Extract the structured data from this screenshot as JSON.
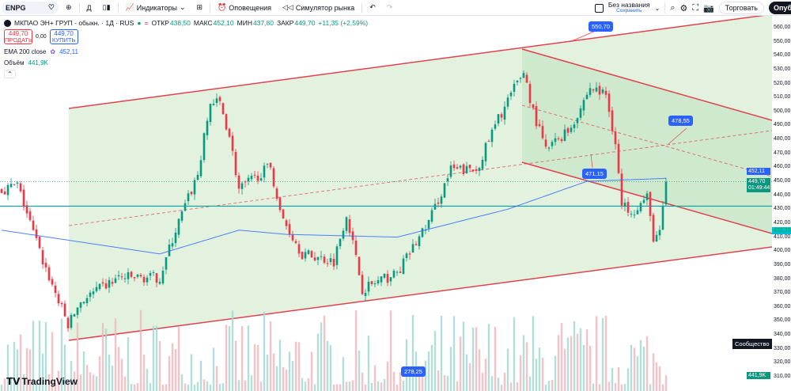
{
  "toolbar": {
    "symbol": "ENPG",
    "interval": "Д",
    "indicators": "Индикаторы",
    "alerts": "Оповещения",
    "replay": "Симулятор рынка",
    "layout_name": "Без названия",
    "layout_save": "Сохранить",
    "trade": "Торговать",
    "publish": "Опубликовать"
  },
  "legend": {
    "title": "МКПАО ЭН+ ГРУП - обыкн. · 1Д · RUS",
    "o_label": "ОТКР",
    "o": "438,50",
    "h_label": "МАКС",
    "h": "452,10",
    "l_label": "МИН",
    "l": "437,80",
    "c_label": "ЗАКР",
    "c": "449,70",
    "change": "+11,35 (+2,59%)",
    "sell_price": "449,70",
    "sell_label": "ПРОДАТЬ",
    "spread": "0,00",
    "buy_price": "449,70",
    "buy_label": "КУПИТЬ",
    "ema_label": "EMA 200 close",
    "ema_value": "452,11",
    "vol_label": "Объём",
    "vol_value": "441,9K"
  },
  "axis": {
    "ticks": [
      "560,00",
      "550,00",
      "540,00",
      "530,00",
      "520,00",
      "510,00",
      "500,00",
      "490,00",
      "480,00",
      "470,00",
      "460,00",
      "450,00",
      "440,00",
      "430,00",
      "420,00",
      "410,00",
      "400,00",
      "390,00",
      "380,00",
      "370,00",
      "360,00",
      "350,00",
      "340,00",
      "330,00",
      "320,00",
      "310,00"
    ],
    "ema_price": "452,11",
    "last_price": "449,70",
    "countdown": "01:49:44",
    "hline_price": "432,20",
    "vol_badge": "441,9K"
  },
  "annotations": {
    "a1": "550,70",
    "a2": "478,55",
    "a3": "471,15",
    "a4": "278,25"
  },
  "community_label": "Сообщество",
  "brand": "TradingView",
  "colors": {
    "up": "#089981",
    "down": "#f23645",
    "channel": "#e0424e",
    "ema": "#2962ff",
    "hline": "#00a3a3"
  },
  "chart_data": {
    "type": "candlestick",
    "price_path": [
      [
        0,
        444
      ],
      [
        5,
        447
      ],
      [
        8,
        427
      ],
      [
        13,
        393
      ],
      [
        21,
        347
      ],
      [
        25,
        364
      ],
      [
        37,
        381
      ],
      [
        50,
        381
      ],
      [
        55,
        415
      ],
      [
        62,
        455
      ],
      [
        66,
        506
      ],
      [
        69,
        506
      ],
      [
        72,
        483
      ],
      [
        75,
        444
      ],
      [
        85,
        461
      ],
      [
        88,
        427
      ],
      [
        95,
        398
      ],
      [
        105,
        393
      ],
      [
        109,
        427
      ],
      [
        114,
        373
      ],
      [
        125,
        384
      ],
      [
        135,
        421
      ],
      [
        142,
        458
      ],
      [
        150,
        458
      ],
      [
        157,
        495
      ],
      [
        165,
        529
      ],
      [
        168,
        500
      ],
      [
        172,
        472
      ],
      [
        180,
        489
      ],
      [
        186,
        517
      ],
      [
        191,
        512
      ],
      [
        194,
        478
      ],
      [
        196,
        432
      ],
      [
        200,
        430
      ],
      [
        204,
        438
      ],
      [
        206,
        410
      ],
      [
        208,
        412
      ],
      [
        210,
        449.7
      ]
    ],
    "ema_path": [
      [
        0,
        415
      ],
      [
        50,
        398
      ],
      [
        75,
        415
      ],
      [
        90,
        412
      ],
      [
        125,
        410
      ],
      [
        160,
        430
      ],
      [
        185,
        450
      ],
      [
        210,
        452.11
      ]
    ],
    "hline": 432.2,
    "ylim": [
      305,
      565
    ]
  }
}
